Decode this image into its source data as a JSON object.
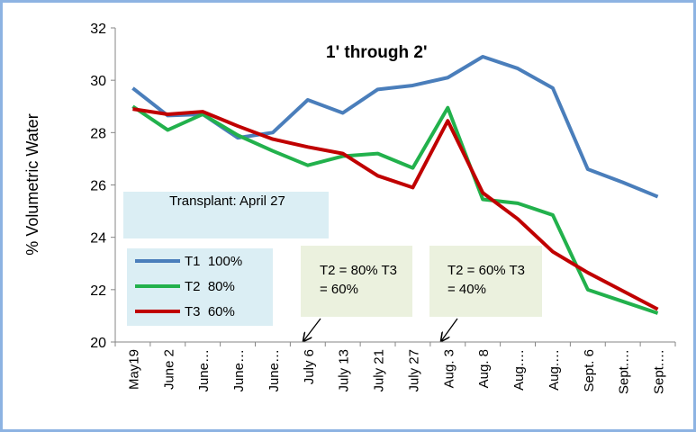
{
  "chart_data": {
    "type": "line",
    "y_label": "% Volumetric Water",
    "categories": [
      "May19",
      "June 2",
      "June…",
      "June…",
      "June…",
      "July 6",
      "July 13",
      "July 21",
      "July 27",
      "Aug. 3",
      "Aug. 8",
      "Aug.…",
      "Aug.…",
      "Sept. 6",
      "Sept.…",
      "Sept.…"
    ],
    "series": [
      {
        "name": "T1  100%",
        "color": "#4a7ebb",
        "values": [
          29.7,
          28.65,
          28.7,
          27.8,
          28.0,
          29.25,
          28.75,
          29.65,
          29.8,
          30.1,
          30.9,
          30.45,
          29.7,
          26.6,
          26.1,
          25.55
        ]
      },
      {
        "name": "T2  80%",
        "color": "#22b14c",
        "values": [
          29.0,
          28.1,
          28.7,
          27.9,
          27.3,
          26.75,
          27.1,
          27.2,
          26.65,
          28.95,
          25.45,
          25.3,
          24.85,
          22.0,
          21.55,
          21.1
        ]
      },
      {
        "name": "T3  60%",
        "color": "#c00000",
        "values": [
          28.9,
          28.7,
          28.8,
          28.25,
          27.75,
          27.45,
          27.2,
          26.35,
          25.9,
          28.45,
          25.7,
          24.7,
          23.45,
          22.65,
          21.95,
          21.25
        ]
      }
    ],
    "ylim": [
      20,
      32
    ],
    "yticks": [
      20,
      22,
      24,
      26,
      28,
      30,
      32
    ],
    "grid": false,
    "annotations": [
      "1' through 2'",
      "Transplant: April 27",
      "T2 = 80%  T3 = 60%",
      "T2 = 60%  T3 = 40%"
    ]
  }
}
